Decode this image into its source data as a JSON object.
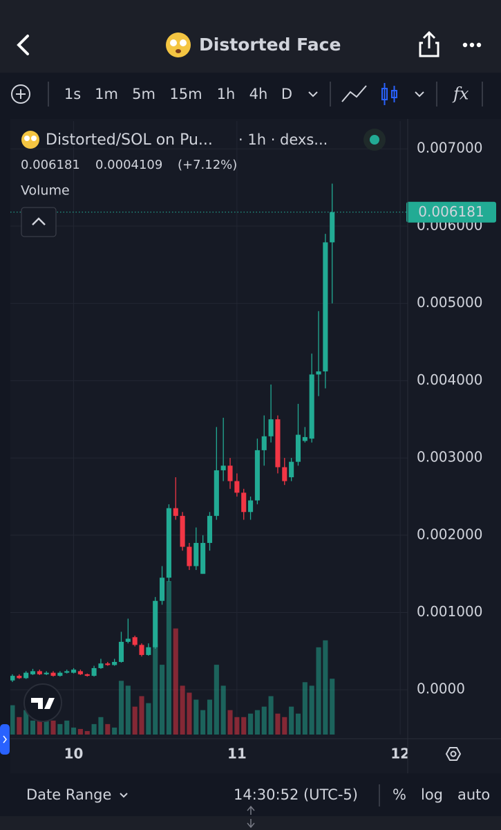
{
  "header": {
    "title": "Distorted Face"
  },
  "toolbar": {
    "intervals": [
      {
        "label": "1s",
        "active": false
      },
      {
        "label": "1m",
        "active": false
      },
      {
        "label": "5m",
        "active": false
      },
      {
        "label": "15m",
        "active": false
      },
      {
        "label": "1h",
        "active": true
      },
      {
        "label": "4h",
        "active": false
      },
      {
        "label": "D",
        "active": false
      }
    ],
    "indicator": "fx"
  },
  "legend": {
    "symbol": "Distorted/SOL on Pu...",
    "meta": "· 1h · dexs...",
    "price": "0.006181",
    "change": "0.0004109",
    "change_pct": "(+7.12%)",
    "volume_label": "Volume"
  },
  "chart_data": {
    "type": "candlestick",
    "up_color": "#22ab94",
    "down_color": "#f23645",
    "open": [
      0.00012,
      0.00018,
      0.00015,
      0.0002,
      0.00024,
      0.0002,
      0.00022,
      0.00018,
      0.00022,
      0.00022,
      0.00024,
      0.0002,
      0.00018,
      0.00028,
      0.00034,
      0.00032,
      0.00036,
      0.00062,
      0.00068,
      0.00058,
      0.00045,
      0.00055,
      0.00115,
      0.00145,
      0.00235,
      0.00225,
      0.00185,
      0.0016,
      0.0015,
      0.0019,
      0.00225,
      0.00284,
      0.0029,
      0.0027,
      0.00255,
      0.0023,
      0.00245,
      0.0031,
      0.00328,
      0.0035,
      0.00288,
      0.00275,
      0.00295,
      0.00322,
      0.00325,
      0.00408,
      0.00412,
      0.00579
    ],
    "high": [
      0.0002,
      0.0002,
      0.00024,
      0.00027,
      0.00026,
      0.00024,
      0.00024,
      0.00024,
      0.00026,
      0.00028,
      0.00026,
      0.00021,
      0.00031,
      0.0004,
      0.00036,
      0.0004,
      0.00075,
      0.00092,
      0.0007,
      0.0006,
      0.0006,
      0.0012,
      0.0016,
      0.0024,
      0.00275,
      0.0023,
      0.0019,
      0.0021,
      0.002,
      0.0023,
      0.0034,
      0.00352,
      0.003,
      0.0028,
      0.0026,
      0.0025,
      0.00325,
      0.00355,
      0.00395,
      0.00355,
      0.003,
      0.003,
      0.0037,
      0.0034,
      0.00435,
      0.0049,
      0.0059,
      0.00655
    ],
    "low": [
      0.0001,
      0.00014,
      0.00014,
      0.00019,
      0.00019,
      0.00019,
      0.00017,
      0.00017,
      0.00021,
      0.00021,
      0.00019,
      0.00017,
      0.00017,
      0.00027,
      0.00031,
      0.00031,
      0.00035,
      0.0006,
      0.00056,
      0.00043,
      0.00044,
      0.00053,
      0.0011,
      0.0014,
      0.0022,
      0.0018,
      0.00155,
      0.00155,
      0.0015,
      0.0018,
      0.0022,
      0.0027,
      0.0026,
      0.0025,
      0.0022,
      0.0022,
      0.0024,
      0.0029,
      0.0032,
      0.0028,
      0.00265,
      0.0027,
      0.0029,
      0.0032,
      0.0032,
      0.0038,
      0.0039,
      0.005
    ],
    "close": [
      0.00018,
      0.00015,
      0.00022,
      0.00024,
      0.0002,
      0.00022,
      0.00018,
      0.00022,
      0.00024,
      0.00026,
      0.0002,
      0.00018,
      0.00028,
      0.00034,
      0.00032,
      0.00036,
      0.00062,
      0.00066,
      0.00058,
      0.00045,
      0.00055,
      0.00115,
      0.00145,
      0.00235,
      0.00225,
      0.00185,
      0.0016,
      0.0019,
      0.0019,
      0.00225,
      0.00284,
      0.0029,
      0.0027,
      0.00255,
      0.0023,
      0.00245,
      0.0031,
      0.00328,
      0.0035,
      0.00288,
      0.0027,
      0.00295,
      0.0033,
      0.00327,
      0.00408,
      0.00412,
      0.00579,
      0.00618
    ],
    "volume": [
      42,
      25,
      35,
      20,
      40,
      25,
      20,
      15,
      20,
      10,
      8,
      5,
      15,
      25,
      15,
      10,
      77,
      70,
      40,
      55,
      45,
      130,
      100,
      220,
      152,
      70,
      60,
      50,
      35,
      50,
      100,
      70,
      35,
      25,
      25,
      30,
      35,
      40,
      55,
      30,
      25,
      40,
      30,
      75,
      70,
      125,
      135,
      80
    ],
    "ylim": [
      -0.00058,
      0.00736
    ],
    "yticks": [
      {
        "value": 0.007,
        "label": "0.007000"
      },
      {
        "value": 0.006,
        "label": "0.006000"
      },
      {
        "value": 0.005,
        "label": "0.005000"
      },
      {
        "value": 0.004,
        "label": "0.004000"
      },
      {
        "value": 0.003,
        "label": "0.003000"
      },
      {
        "value": 0.002,
        "label": "0.002000"
      },
      {
        "value": 0.001,
        "label": "0.001000"
      },
      {
        "value": 0,
        "label": "0.0000"
      }
    ],
    "xlim": [
      -0.3,
      58.1
    ],
    "xticks": [
      {
        "value": 9,
        "label": "10"
      },
      {
        "value": 33,
        "label": "11"
      },
      {
        "value": 57,
        "label": "12"
      }
    ],
    "last_price": {
      "value": 0.006181,
      "label": "0.006181"
    },
    "grid": true
  },
  "footer": {
    "date_range": "Date Range",
    "time": "14:30:52 (UTC-5)",
    "percent": "%",
    "log": "log",
    "auto": "auto"
  }
}
